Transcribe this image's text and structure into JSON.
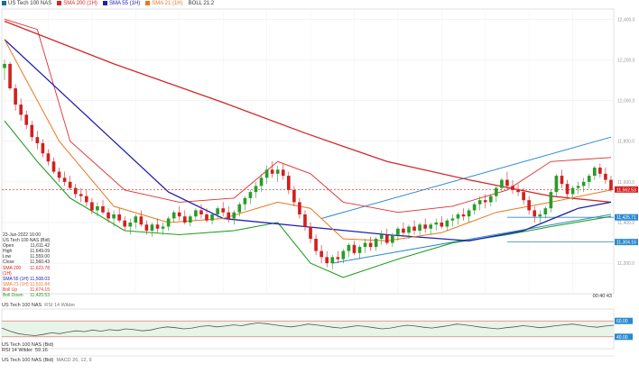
{
  "colors": {
    "candle_up": "#2a9b2a",
    "candle_down": "#d21f1f",
    "sma200": "#d32626",
    "sma55": "#2020b0",
    "sma21": "#e87722",
    "boll_upper": "#e03030",
    "boll_lower": "#22a022",
    "channel": "#2a8ad0",
    "price_line": "#d21f1f",
    "rsi": "#555555"
  },
  "legend_top": [
    {
      "label": "US Tech 100 NAS",
      "color": "#1a6aa8"
    },
    {
      "label": "SMA 200 (1H)",
      "color": "#d32626"
    },
    {
      "label": "SMA 55 (1H)",
      "color": "#2020b0"
    },
    {
      "label": "SMA 21 (1H)",
      "color": "#e87722"
    },
    {
      "label": "BOLL 21.2",
      "color": "#555555"
    }
  ],
  "info_panel": {
    "date": "23-Jun-2022 16:00",
    "title": "US Tech 100 NAS (Bid)",
    "rows": [
      {
        "label": "Open",
        "value": "11,611.42"
      },
      {
        "label": "High",
        "value": "11,649.09"
      },
      {
        "label": "Low",
        "value": "11,559.00"
      },
      {
        "label": "Close",
        "value": "11,560.43"
      },
      {
        "label": "SMA 200 (1H)",
        "value": "11,623.78",
        "color": "#d32626"
      },
      {
        "label": "SMA 55 (1H)",
        "value": "11,508.03",
        "color": "#2020b0"
      },
      {
        "label": "SMA 21 (1H)",
        "value": "11,531.84",
        "color": "#e87722"
      },
      {
        "label": "Boll Up",
        "value": "11,674.15",
        "color": "#e03030"
      },
      {
        "label": "Boll Down",
        "value": "11,425.53",
        "color": "#22a022"
      }
    ]
  },
  "time_label": "00:40:43",
  "rsi_pane": {
    "title": "US Tech 100 NAS",
    "indicator": "RSI 14 Wilder",
    "sub_label": "RSI 14 Wilder",
    "sub_value": "59.16"
  },
  "macd_pane": {
    "title": "US Tech 100 NAS (Bid)",
    "indicator": "MACD 26, 12, 9"
  },
  "price_tags": [
    {
      "value": "11,562.53",
      "kind": "price"
    },
    {
      "value": "11,425.71",
      "kind": "level"
    },
    {
      "value": "11,304.16",
      "kind": "level"
    }
  ],
  "rsi_tags": [
    {
      "value": "60.00"
    },
    {
      "value": "40.00"
    }
  ],
  "chart_data": {
    "type": "candlestick",
    "price_ylim": [
      11050,
      12450
    ],
    "y_ticks": [
      12400,
      12200,
      12000,
      11800,
      11600,
      11400,
      11200
    ],
    "ohlc": [
      [
        12160,
        12200,
        12100,
        12180
      ],
      [
        12180,
        12190,
        12050,
        12060
      ],
      [
        12060,
        12080,
        11950,
        11980
      ],
      [
        11980,
        12010,
        11900,
        11930
      ],
      [
        11930,
        11950,
        11860,
        11880
      ],
      [
        11880,
        11900,
        11800,
        11820
      ],
      [
        11820,
        11850,
        11760,
        11790
      ],
      [
        11790,
        11810,
        11720,
        11740
      ],
      [
        11740,
        11760,
        11680,
        11700
      ],
      [
        11700,
        11720,
        11640,
        11650
      ],
      [
        11650,
        11670,
        11600,
        11620
      ],
      [
        11620,
        11650,
        11580,
        11600
      ],
      [
        11600,
        11630,
        11560,
        11570
      ],
      [
        11570,
        11590,
        11520,
        11540
      ],
      [
        11540,
        11570,
        11500,
        11530
      ],
      [
        11530,
        11560,
        11480,
        11500
      ],
      [
        11500,
        11520,
        11440,
        11460
      ],
      [
        11460,
        11500,
        11430,
        11480
      ],
      [
        11480,
        11510,
        11440,
        11450
      ],
      [
        11450,
        11470,
        11400,
        11420
      ],
      [
        11420,
        11460,
        11380,
        11440
      ],
      [
        11440,
        11470,
        11400,
        11410
      ],
      [
        11410,
        11430,
        11360,
        11380
      ],
      [
        11380,
        11420,
        11340,
        11400
      ],
      [
        11400,
        11440,
        11370,
        11430
      ],
      [
        11430,
        11460,
        11380,
        11390
      ],
      [
        11390,
        11410,
        11340,
        11360
      ],
      [
        11360,
        11400,
        11330,
        11390
      ],
      [
        11390,
        11420,
        11350,
        11370
      ],
      [
        11370,
        11400,
        11340,
        11380
      ],
      [
        11380,
        11430,
        11360,
        11420
      ],
      [
        11420,
        11460,
        11400,
        11450
      ],
      [
        11450,
        11480,
        11410,
        11430
      ],
      [
        11430,
        11460,
        11390,
        11400
      ],
      [
        11400,
        11440,
        11380,
        11430
      ],
      [
        11430,
        11470,
        11410,
        11460
      ],
      [
        11460,
        11490,
        11420,
        11440
      ],
      [
        11440,
        11470,
        11400,
        11410
      ],
      [
        11410,
        11450,
        11390,
        11440
      ],
      [
        11440,
        11480,
        11420,
        11470
      ],
      [
        11470,
        11500,
        11430,
        11450
      ],
      [
        11450,
        11480,
        11400,
        11420
      ],
      [
        11420,
        11460,
        11390,
        11450
      ],
      [
        11450,
        11500,
        11430,
        11490
      ],
      [
        11490,
        11530,
        11460,
        11520
      ],
      [
        11520,
        11560,
        11490,
        11550
      ],
      [
        11550,
        11600,
        11520,
        11580
      ],
      [
        11580,
        11640,
        11550,
        11620
      ],
      [
        11620,
        11680,
        11590,
        11660
      ],
      [
        11660,
        11700,
        11620,
        11640
      ],
      [
        11640,
        11680,
        11600,
        11660
      ],
      [
        11660,
        11690,
        11610,
        11630
      ],
      [
        11630,
        11650,
        11540,
        11560
      ],
      [
        11560,
        11580,
        11480,
        11500
      ],
      [
        11500,
        11520,
        11420,
        11440
      ],
      [
        11440,
        11460,
        11360,
        11380
      ],
      [
        11380,
        11400,
        11300,
        11320
      ],
      [
        11320,
        11340,
        11240,
        11260
      ],
      [
        11260,
        11290,
        11200,
        11230
      ],
      [
        11230,
        11260,
        11180,
        11200
      ],
      [
        11200,
        11240,
        11170,
        11230
      ],
      [
        11230,
        11260,
        11200,
        11220
      ],
      [
        11220,
        11270,
        11200,
        11260
      ],
      [
        11260,
        11300,
        11230,
        11290
      ],
      [
        11290,
        11310,
        11240,
        11250
      ],
      [
        11250,
        11290,
        11220,
        11280
      ],
      [
        11280,
        11320,
        11250,
        11300
      ],
      [
        11300,
        11330,
        11260,
        11280
      ],
      [
        11280,
        11330,
        11260,
        11320
      ],
      [
        11320,
        11360,
        11290,
        11340
      ],
      [
        11340,
        11370,
        11290,
        11300
      ],
      [
        11300,
        11350,
        11280,
        11340
      ],
      [
        11340,
        11380,
        11310,
        11370
      ],
      [
        11370,
        11400,
        11330,
        11350
      ],
      [
        11350,
        11390,
        11320,
        11380
      ],
      [
        11380,
        11410,
        11340,
        11360
      ],
      [
        11360,
        11400,
        11340,
        11390
      ],
      [
        11390,
        11420,
        11350,
        11370
      ],
      [
        11370,
        11400,
        11340,
        11390
      ],
      [
        11390,
        11420,
        11360,
        11400
      ],
      [
        11400,
        11430,
        11370,
        11380
      ],
      [
        11380,
        11420,
        11360,
        11410
      ],
      [
        11410,
        11440,
        11380,
        11420
      ],
      [
        11420,
        11450,
        11390,
        11440
      ],
      [
        11440,
        11470,
        11410,
        11430
      ],
      [
        11430,
        11470,
        11400,
        11460
      ],
      [
        11460,
        11500,
        11440,
        11490
      ],
      [
        11490,
        11530,
        11460,
        11510
      ],
      [
        11510,
        11540,
        11470,
        11500
      ],
      [
        11500,
        11540,
        11480,
        11530
      ],
      [
        11530,
        11580,
        11500,
        11570
      ],
      [
        11570,
        11620,
        11550,
        11610
      ],
      [
        11610,
        11650,
        11560,
        11580
      ],
      [
        11580,
        11610,
        11540,
        11560
      ],
      [
        11560,
        11590,
        11530,
        11550
      ],
      [
        11550,
        11570,
        11490,
        11510
      ],
      [
        11510,
        11530,
        11440,
        11460
      ],
      [
        11460,
        11480,
        11400,
        11430
      ],
      [
        11430,
        11460,
        11390,
        11440
      ],
      [
        11440,
        11480,
        11420,
        11470
      ],
      [
        11470,
        11560,
        11450,
        11550
      ],
      [
        11550,
        11640,
        11530,
        11630
      ],
      [
        11630,
        11660,
        11570,
        11590
      ],
      [
        11590,
        11610,
        11520,
        11540
      ],
      [
        11540,
        11580,
        11510,
        11570
      ],
      [
        11570,
        11600,
        11540,
        11580
      ],
      [
        11580,
        11620,
        11550,
        11600
      ],
      [
        11600,
        11640,
        11570,
        11630
      ],
      [
        11630,
        11680,
        11610,
        11670
      ],
      [
        11670,
        11690,
        11620,
        11640
      ],
      [
        11640,
        11670,
        11590,
        11610
      ],
      [
        11610,
        11630,
        11550,
        11560
      ]
    ],
    "sma200": [
      [
        0,
        12390
      ],
      [
        20,
        12180
      ],
      [
        40,
        11990
      ],
      [
        55,
        11840
      ],
      [
        70,
        11700
      ],
      [
        85,
        11610
      ],
      [
        100,
        11530
      ],
      [
        111,
        11500
      ]
    ],
    "sma55": [
      [
        0,
        12300
      ],
      [
        10,
        12050
      ],
      [
        20,
        11800
      ],
      [
        30,
        11550
      ],
      [
        40,
        11420
      ],
      [
        55,
        11380
      ],
      [
        70,
        11340
      ],
      [
        85,
        11310
      ],
      [
        95,
        11360
      ],
      [
        105,
        11470
      ],
      [
        111,
        11500
      ]
    ],
    "sma21": [
      [
        0,
        12300
      ],
      [
        10,
        11800
      ],
      [
        20,
        11480
      ],
      [
        30,
        11400
      ],
      [
        40,
        11420
      ],
      [
        50,
        11500
      ],
      [
        56,
        11470
      ],
      [
        62,
        11320
      ],
      [
        70,
        11310
      ],
      [
        80,
        11350
      ],
      [
        90,
        11450
      ],
      [
        100,
        11500
      ],
      [
        111,
        11560
      ]
    ],
    "boll_upper": [
      [
        0,
        12400
      ],
      [
        6,
        12350
      ],
      [
        12,
        11800
      ],
      [
        22,
        11560
      ],
      [
        32,
        11500
      ],
      [
        42,
        11520
      ],
      [
        50,
        11700
      ],
      [
        56,
        11640
      ],
      [
        62,
        11500
      ],
      [
        72,
        11450
      ],
      [
        82,
        11480
      ],
      [
        92,
        11560
      ],
      [
        100,
        11700
      ],
      [
        111,
        11720
      ]
    ],
    "boll_lower": [
      [
        0,
        11900
      ],
      [
        6,
        11700
      ],
      [
        12,
        11520
      ],
      [
        22,
        11360
      ],
      [
        32,
        11340
      ],
      [
        42,
        11360
      ],
      [
        50,
        11400
      ],
      [
        56,
        11200
      ],
      [
        62,
        11130
      ],
      [
        72,
        11220
      ],
      [
        82,
        11300
      ],
      [
        92,
        11340
      ],
      [
        100,
        11380
      ],
      [
        111,
        11430
      ]
    ],
    "channel_upper": [
      [
        58,
        11420
      ],
      [
        111,
        11820
      ]
    ],
    "channel_lower": [
      [
        60,
        11200
      ],
      [
        111,
        11440
      ]
    ],
    "h_levels": [
      11425.71,
      11304.16
    ],
    "current_price": 11562.53,
    "rsi": {
      "ylim": [
        0,
        100
      ],
      "levels": [
        70,
        30
      ],
      "values": [
        52,
        44,
        38,
        35,
        33,
        36,
        40,
        38,
        42,
        45,
        43,
        47,
        44,
        48,
        46,
        50,
        48,
        45,
        47,
        52,
        55,
        53,
        50,
        52,
        56,
        58,
        55,
        57,
        60,
        58,
        62,
        65,
        63,
        60,
        57,
        55,
        58,
        62,
        60,
        57,
        54,
        52,
        55,
        58,
        56,
        53,
        50,
        52,
        56,
        59,
        57,
        54,
        52,
        55,
        58,
        62,
        60,
        57,
        54,
        52,
        50,
        53,
        55,
        58,
        56,
        53,
        55,
        58,
        60,
        62,
        59,
        56,
        54,
        57,
        59
      ]
    }
  }
}
